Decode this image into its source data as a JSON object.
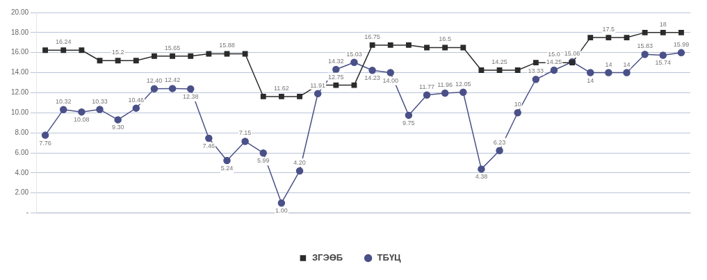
{
  "chart_data": {
    "type": "line",
    "categories": [
      null,
      null,
      null,
      null,
      null,
      null,
      null,
      null,
      null,
      null,
      null,
      null,
      null,
      null,
      null,
      null,
      null,
      null,
      null,
      null,
      null,
      null,
      null,
      null,
      null,
      null,
      null,
      null,
      null,
      null,
      null,
      null,
      null,
      null,
      null,
      null
    ],
    "series": [
      {
        "name": "ТБҮЦ",
        "color": "#4a5088",
        "marker": "circle",
        "values": [
          7.76,
          10.32,
          10.08,
          10.33,
          9.3,
          10.46,
          12.4,
          12.42,
          12.38,
          7.46,
          5.24,
          7.15,
          5.99,
          1.0,
          4.2,
          11.91,
          14.32,
          15.03,
          14.23,
          14.0,
          9.75,
          11.77,
          11.96,
          12.05,
          4.38,
          6.23,
          10,
          13.33,
          14.25,
          15.08,
          14,
          14,
          14,
          15.83,
          15.74,
          15.99
        ],
        "value_labels": [
          "7.76",
          "10.32",
          "10.08",
          "10.33",
          "9.30",
          "10.46",
          "12.40",
          "12.42",
          "12.38",
          "7.46",
          "5.24",
          "7.15",
          "5.99",
          "1.00",
          "4.20",
          "11.91",
          "14.32",
          "15.03",
          "14.23",
          "14.00",
          "9.75",
          "11.77",
          "11.96",
          "12.05",
          "4.38",
          "6.23",
          "10",
          "13.33",
          "14.25",
          "15.08",
          "14",
          "14",
          "14",
          "15.83",
          "15.74",
          "15.99"
        ]
      },
      {
        "name": "ЗГЭӨБ",
        "color": "#2b2b2b",
        "marker": "square",
        "values": [
          16.24,
          16.24,
          16.24,
          15.2,
          15.2,
          15.2,
          15.65,
          15.65,
          15.65,
          15.88,
          15.88,
          15.88,
          11.62,
          11.62,
          11.62,
          12.75,
          12.75,
          12.75,
          16.75,
          16.75,
          16.75,
          16.5,
          16.5,
          16.5,
          14.25,
          14.25,
          14.25,
          15.0,
          15.0,
          15.0,
          17.5,
          17.5,
          17.5,
          18,
          18,
          18
        ],
        "value_labels": [
          null,
          "16.24",
          null,
          null,
          "15.2",
          null,
          null,
          "15.65",
          null,
          null,
          "15.88",
          null,
          null,
          "11.62",
          null,
          null,
          "12.75",
          null,
          "16.75",
          null,
          null,
          null,
          "16.5",
          null,
          null,
          "14.25",
          null,
          null,
          "15.0",
          null,
          null,
          "17.5",
          null,
          null,
          "18",
          null
        ]
      }
    ],
    "ylim": [
      0,
      20
    ],
    "yticks": [
      {
        "value": 0,
        "label": "-"
      },
      {
        "value": 2,
        "label": "2.00"
      },
      {
        "value": 4,
        "label": "4.00"
      },
      {
        "value": 6,
        "label": "6.00"
      },
      {
        "value": 8,
        "label": "8.00"
      },
      {
        "value": 10,
        "label": "10.00"
      },
      {
        "value": 12,
        "label": "12.00"
      },
      {
        "value": 14,
        "label": "14.00"
      },
      {
        "value": 16,
        "label": "16.00"
      },
      {
        "value": 18,
        "label": "18.00"
      },
      {
        "value": 20,
        "label": "20.00"
      }
    ],
    "grid": "y",
    "legend": "bottom",
    "line_style": "solid"
  }
}
